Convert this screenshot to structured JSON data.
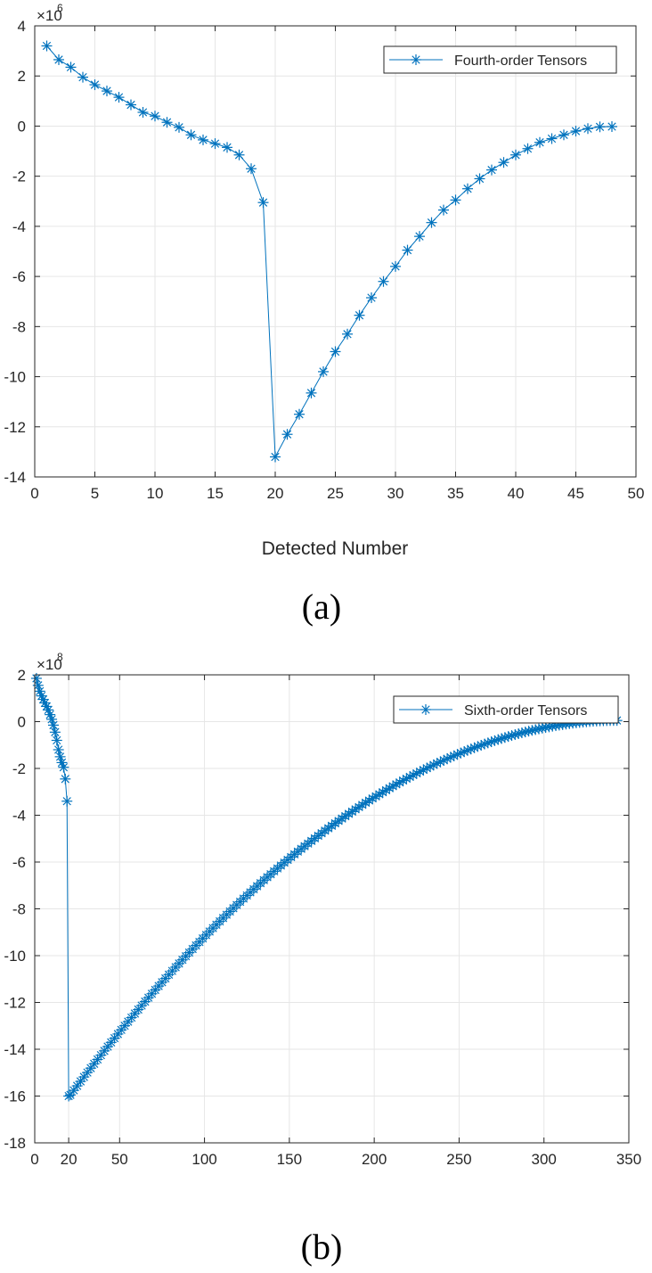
{
  "chart_data": [
    {
      "type": "line",
      "panel_label": "(a)",
      "xlabel": "Detected Number",
      "ylabel": "",
      "xlim": [
        0,
        50
      ],
      "ylim": [
        -14,
        4
      ],
      "xticks": [
        "0",
        "5",
        "10",
        "15",
        "20",
        "25",
        "30",
        "35",
        "40",
        "45",
        "50"
      ],
      "yticks": [
        "-14",
        "-12",
        "-10",
        "-8",
        "-6",
        "-4",
        "-2",
        "0",
        "2",
        "4"
      ],
      "exponent_base": "×10",
      "exponent_power": "6",
      "grid": true,
      "legend_position": "top-right",
      "marker": "asterisk",
      "series": [
        {
          "name": "Fourth-order Tensors",
          "color": "#0072BD",
          "x": [
            1,
            2,
            3,
            4,
            5,
            6,
            7,
            8,
            9,
            10,
            11,
            12,
            13,
            14,
            15,
            16,
            17,
            18,
            19,
            20,
            21,
            22,
            23,
            24,
            25,
            26,
            27,
            28,
            29,
            30,
            31,
            32,
            33,
            34,
            35,
            36,
            37,
            38,
            39,
            40,
            41,
            42,
            43,
            44,
            45,
            46,
            47,
            48
          ],
          "y": [
            3.2,
            2.65,
            2.35,
            1.95,
            1.65,
            1.4,
            1.15,
            0.85,
            0.55,
            0.4,
            0.15,
            -0.05,
            -0.35,
            -0.55,
            -0.7,
            -0.85,
            -1.15,
            -1.7,
            -3.05,
            -13.2,
            -12.3,
            -11.5,
            -10.65,
            -9.8,
            -9.0,
            -8.3,
            -7.55,
            -6.85,
            -6.2,
            -5.6,
            -4.95,
            -4.4,
            -3.85,
            -3.35,
            -2.95,
            -2.5,
            -2.1,
            -1.75,
            -1.45,
            -1.15,
            -0.9,
            -0.65,
            -0.5,
            -0.35,
            -0.2,
            -0.1,
            -0.03,
            -0.02
          ]
        }
      ]
    },
    {
      "type": "line",
      "panel_label": "(b)",
      "xlabel": "",
      "ylabel": "",
      "xlim": [
        0,
        350
      ],
      "ylim": [
        -18,
        2
      ],
      "xticks": [
        "0",
        "20",
        "50",
        "100",
        "150",
        "200",
        "250",
        "300",
        "350"
      ],
      "xtick_values": [
        0,
        20,
        50,
        100,
        150,
        200,
        250,
        300,
        350
      ],
      "yticks": [
        "-18",
        "-16",
        "-14",
        "-12",
        "-10",
        "-8",
        "-6",
        "-4",
        "-2",
        "0",
        "2"
      ],
      "exponent_base": "×10",
      "exponent_power": "8",
      "grid": true,
      "legend_position": "top-right",
      "marker": "asterisk",
      "series": [
        {
          "name": "Sixth-order Tensors",
          "color": "#0072BD",
          "x": [
            1,
            2,
            3,
            4,
            5,
            6,
            7,
            8,
            9,
            10,
            11,
            12,
            13,
            14,
            15,
            16,
            17,
            18,
            19,
            20
          ],
          "y": [
            1.85,
            1.55,
            1.3,
            1.1,
            0.95,
            0.8,
            0.65,
            0.5,
            0.3,
            0.1,
            -0.15,
            -0.45,
            -0.8,
            -1.2,
            -1.5,
            -1.75,
            -1.95,
            -2.45,
            -3.4,
            -16.0
          ],
          "curve": {
            "x_start": 21,
            "x_end": 343,
            "step": 2,
            "y_start": -15.95,
            "y_end": 0.05,
            "power": 1.95
          }
        }
      ]
    }
  ]
}
